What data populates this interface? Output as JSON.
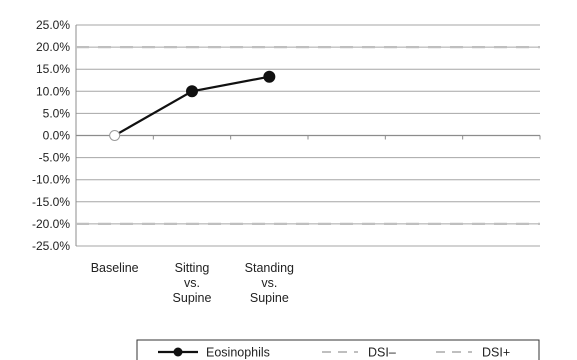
{
  "chart_data": {
    "type": "line",
    "categories": [
      [
        "Baseline"
      ],
      [
        "Sitting",
        "vs.",
        "Supine"
      ],
      [
        "Standing",
        "vs.",
        "Supine"
      ]
    ],
    "series": [
      {
        "name": "Eosinophils",
        "values": [
          0.0,
          10.0,
          13.3
        ],
        "color": "#111111",
        "marker": "circle"
      }
    ],
    "reference_lines": [
      {
        "name": "DSI–",
        "value": 20.0,
        "style": "dashed",
        "color": "#bfbfbf"
      },
      {
        "name": "DSI+",
        "value": -20.0,
        "style": "dashed",
        "color": "#bfbfbf"
      }
    ],
    "y_ticks": [
      "25.0%",
      "20.0%",
      "15.0%",
      "10.0%",
      "5.0%",
      "0.0%",
      "-5.0%",
      "-10.0%",
      "-15.0%",
      "-20.0%",
      "-25.0%"
    ],
    "ylim": [
      -25,
      25
    ],
    "y_step": 5,
    "n_category_slots": 6,
    "grid": true,
    "legend_position": "bottom",
    "title": "",
    "xlabel": "",
    "ylabel": ""
  }
}
